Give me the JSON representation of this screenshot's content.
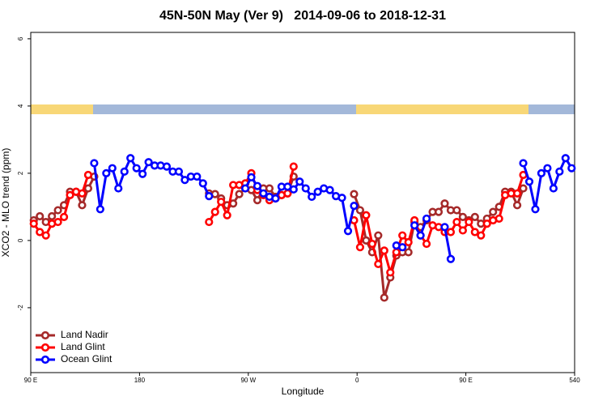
{
  "chart_data": {
    "type": "line",
    "title": "45N-50N May (Ver 9)   2014-09-06 to 2018-12-31",
    "xlabel": "Longitude",
    "ylabel": "XCO2 - MLO trend (ppm)",
    "x": [
      92.5,
      97.5,
      102.5,
      107.5,
      112.5,
      117.5,
      122.5,
      127.5,
      132.5,
      137.5,
      142.5,
      147.5,
      152.5,
      157.5,
      162.5,
      167.5,
      172.5,
      177.5,
      182.5,
      187.5,
      192.5,
      197.5,
      202.5,
      207.5,
      212.5,
      217.5,
      222.5,
      227.5,
      232.5,
      237.5,
      242.5,
      247.5,
      252.5,
      257.5,
      262.5,
      267.5,
      272.5,
      277.5,
      282.5,
      287.5,
      292.5,
      297.5,
      302.5,
      307.5,
      312.5,
      317.5,
      322.5,
      327.5,
      332.5,
      337.5,
      342.5,
      347.5,
      352.5,
      357.5,
      362.5,
      367.5,
      372.5,
      377.5,
      382.5,
      387.5,
      392.5,
      397.5,
      402.5,
      407.5,
      412.5,
      417.5,
      422.5,
      427.5,
      432.5,
      437.5,
      442.5,
      447.5,
      452.5,
      457.5,
      462.5,
      467.5,
      472.5,
      477.5,
      482.5,
      487.5,
      492.5,
      497.5,
      502.5,
      507.5,
      512.5,
      517.5,
      522.5,
      527.5,
      532.5,
      537.5
    ],
    "series": [
      {
        "name": "Land Nadir",
        "color": "#a52a2a",
        "values": [
          0.6,
          0.72,
          0.55,
          0.72,
          0.9,
          1.05,
          1.45,
          1.45,
          1.05,
          1.55,
          1.9,
          null,
          null,
          null,
          null,
          null,
          null,
          null,
          null,
          null,
          null,
          null,
          null,
          null,
          null,
          null,
          null,
          null,
          null,
          1.4,
          1.38,
          1.25,
          1.05,
          1.1,
          1.38,
          1.55,
          1.5,
          1.2,
          1.55,
          1.55,
          1.3,
          1.35,
          1.4,
          1.9,
          null,
          null,
          null,
          null,
          null,
          null,
          null,
          null,
          null,
          1.38,
          0.9,
          0.0,
          -0.35,
          0.15,
          -1.7,
          -1.1,
          -0.45,
          -0.35,
          -0.35,
          0.55,
          0.4,
          0.6,
          0.85,
          0.85,
          1.1,
          0.9,
          0.9,
          0.7,
          0.6,
          0.7,
          0.5,
          0.65,
          0.85,
          1.0,
          1.45,
          1.45,
          1.05,
          1.55,
          null,
          null,
          null,
          null,
          null,
          null,
          null,
          null
        ]
      },
      {
        "name": "Land Glint",
        "color": "#ff0000",
        "values": [
          0.5,
          0.25,
          0.15,
          0.5,
          0.55,
          0.7,
          1.35,
          1.45,
          1.4,
          1.95,
          null,
          null,
          null,
          null,
          null,
          null,
          null,
          null,
          null,
          null,
          null,
          null,
          null,
          null,
          null,
          null,
          null,
          null,
          null,
          0.55,
          0.85,
          1.15,
          0.75,
          1.65,
          1.65,
          1.7,
          2.0,
          1.5,
          1.35,
          1.2,
          1.25,
          1.35,
          1.4,
          2.2,
          null,
          null,
          null,
          null,
          null,
          null,
          null,
          null,
          null,
          0.6,
          -0.2,
          0.75,
          -0.1,
          -0.7,
          -0.3,
          -0.95,
          -0.35,
          0.15,
          -0.05,
          0.6,
          0.15,
          -0.1,
          0.45,
          0.4,
          0.25,
          0.25,
          0.55,
          0.3,
          0.55,
          0.25,
          0.15,
          0.5,
          0.6,
          0.65,
          1.35,
          1.4,
          1.4,
          1.95,
          null,
          null,
          null,
          null,
          null,
          null,
          null,
          null
        ]
      },
      {
        "name": "Ocean Glint",
        "color": "#0000ff",
        "values": [
          null,
          null,
          null,
          null,
          null,
          null,
          null,
          null,
          null,
          null,
          2.3,
          0.93,
          2.0,
          2.15,
          1.55,
          2.05,
          2.45,
          2.15,
          1.98,
          2.33,
          2.23,
          2.23,
          2.2,
          2.05,
          2.05,
          1.8,
          1.9,
          1.9,
          1.7,
          1.32,
          null,
          null,
          null,
          null,
          null,
          1.55,
          1.88,
          1.62,
          1.4,
          1.3,
          1.25,
          1.6,
          1.6,
          1.52,
          1.75,
          1.55,
          1.3,
          1.45,
          1.55,
          1.5,
          1.32,
          1.27,
          0.28,
          1.03,
          null,
          null,
          null,
          null,
          null,
          null,
          -0.15,
          -0.2,
          null,
          0.45,
          0.15,
          0.65,
          null,
          null,
          0.4,
          -0.55,
          null,
          null,
          null,
          null,
          null,
          null,
          null,
          null,
          null,
          null,
          null,
          2.3,
          1.75,
          0.93,
          2.0,
          2.15,
          1.55,
          2.05,
          2.45,
          2.15
        ]
      }
    ],
    "xlim": [
      90,
      540
    ],
    "xticks": [
      {
        "value": 90,
        "label": "90 E"
      },
      180,
      {
        "value": 270,
        "label": "90 W"
      },
      {
        "value": 360,
        "label": "0"
      },
      {
        "value": 450,
        "label": "90 E"
      },
      540
    ],
    "ylim": [
      -3.93,
      6.19
    ],
    "yticks": [
      -2,
      0,
      2,
      4,
      6
    ],
    "legend": "lower left"
  }
}
